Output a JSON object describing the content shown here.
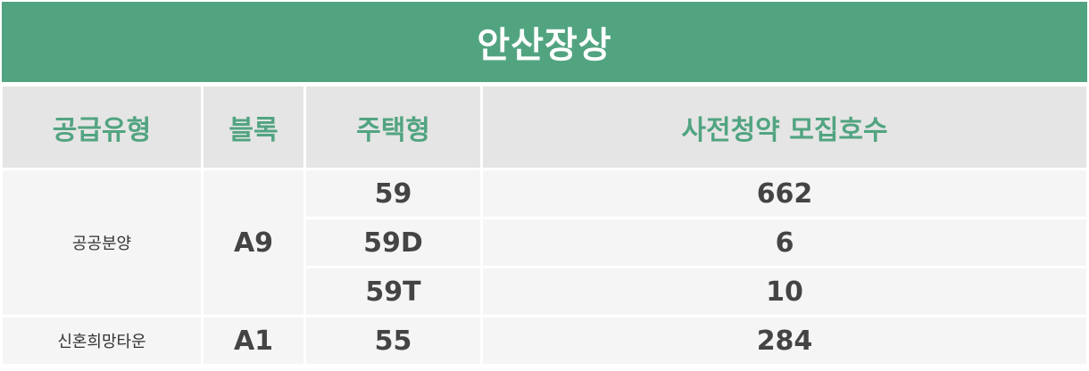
{
  "title": "안산장상",
  "headers": [
    "공급유형",
    "블록",
    "주택형",
    "사전청약 모집호수"
  ],
  "groups": [
    {
      "supply_type": "공공분양",
      "block": "A9",
      "rows": [
        {
          "house_type": "59",
          "count": "662"
        },
        {
          "house_type": "59D",
          "count": "6"
        },
        {
          "house_type": "59T",
          "count": "10"
        }
      ]
    },
    {
      "supply_type": "신혼희망타운",
      "block": "A1",
      "rows": [
        {
          "house_type": "55",
          "count": "284"
        }
      ]
    }
  ],
  "colors": {
    "accent": "#52a481",
    "header_bg": "#e5e5e5",
    "cell_bg": "#f5f5f5"
  }
}
